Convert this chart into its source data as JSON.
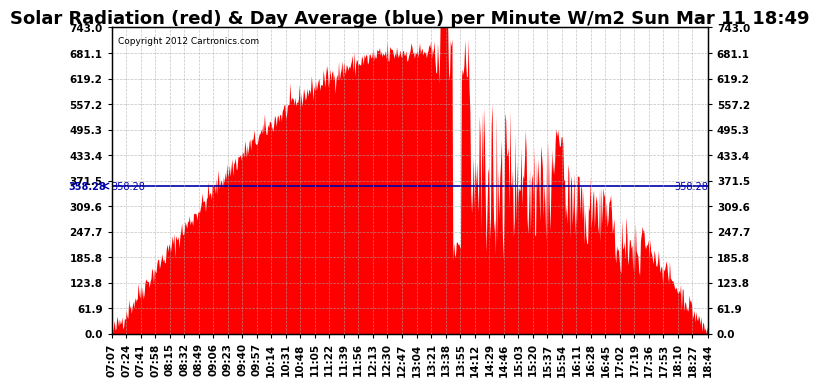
{
  "title": "Solar Radiation (red) & Day Average (blue) per Minute W/m2 Sun Mar 11 18:49",
  "copyright": "Copyright 2012 Cartronics.com",
  "y_max": 743.0,
  "y_min": 0.0,
  "day_average": 358.28,
  "yticks": [
    0.0,
    61.9,
    123.8,
    185.8,
    247.7,
    309.6,
    371.5,
    433.4,
    495.3,
    557.2,
    619.2,
    681.1,
    743.0
  ],
  "bar_color": "#FF0000",
  "avg_line_color": "#0000AA",
  "background_color": "#FFFFFF",
  "grid_color": "#AAAAAA",
  "title_fontsize": 13,
  "tick_fontsize": 7.5,
  "num_minutes": 700
}
